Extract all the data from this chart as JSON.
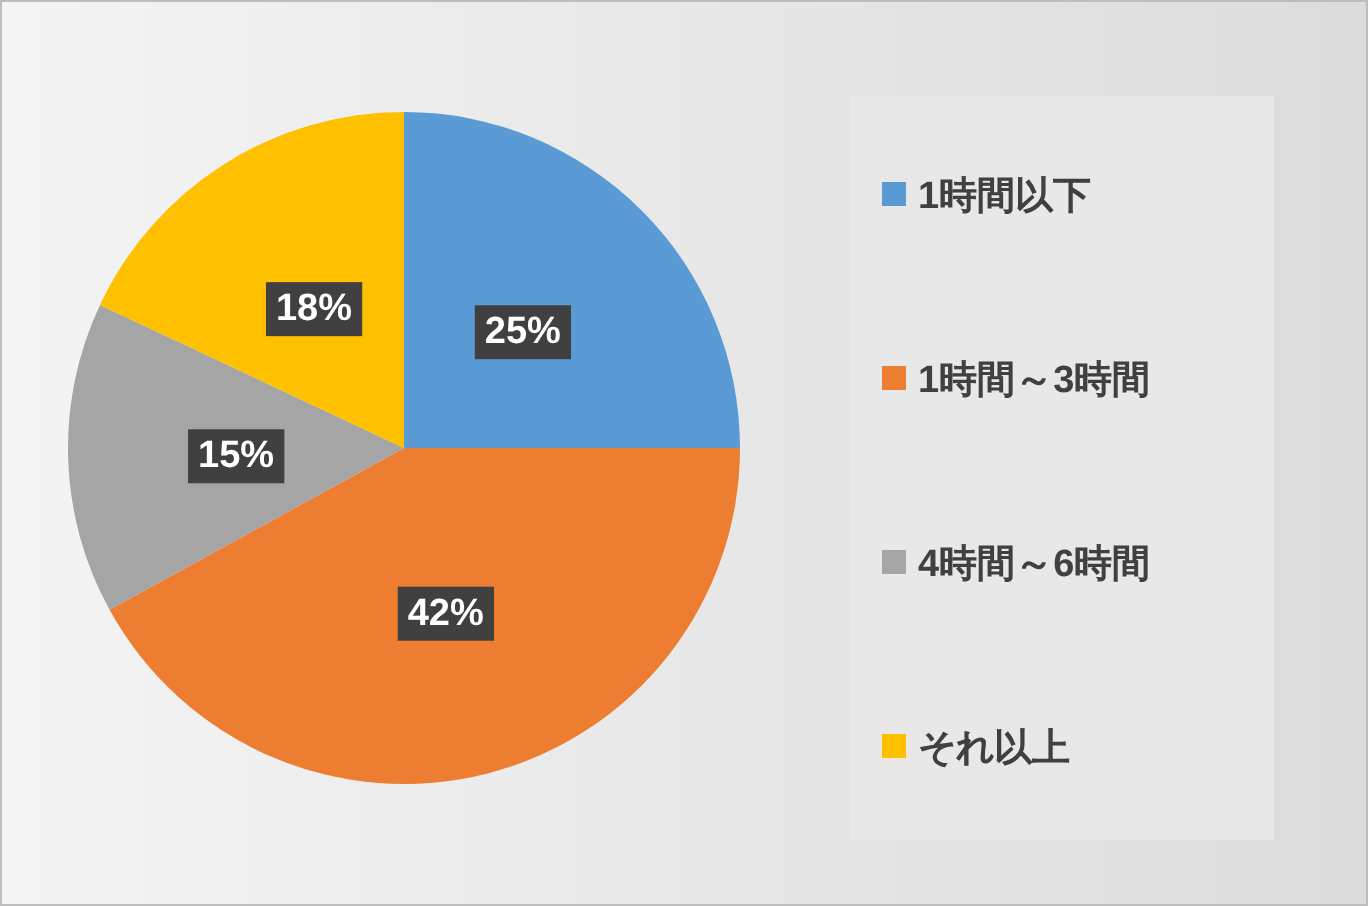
{
  "chart_data": {
    "type": "pie",
    "categories": [
      "1時間以下",
      "1時間～3時間",
      "4時間～6時間",
      "それ以上"
    ],
    "values": [
      25,
      42,
      15,
      18
    ],
    "colors": [
      "#5b9bd5",
      "#ed7d31",
      "#a5a5a5",
      "#ffc000"
    ],
    "value_labels": [
      "25%",
      "42%",
      "15%",
      "18%"
    ],
    "legend": "right"
  }
}
